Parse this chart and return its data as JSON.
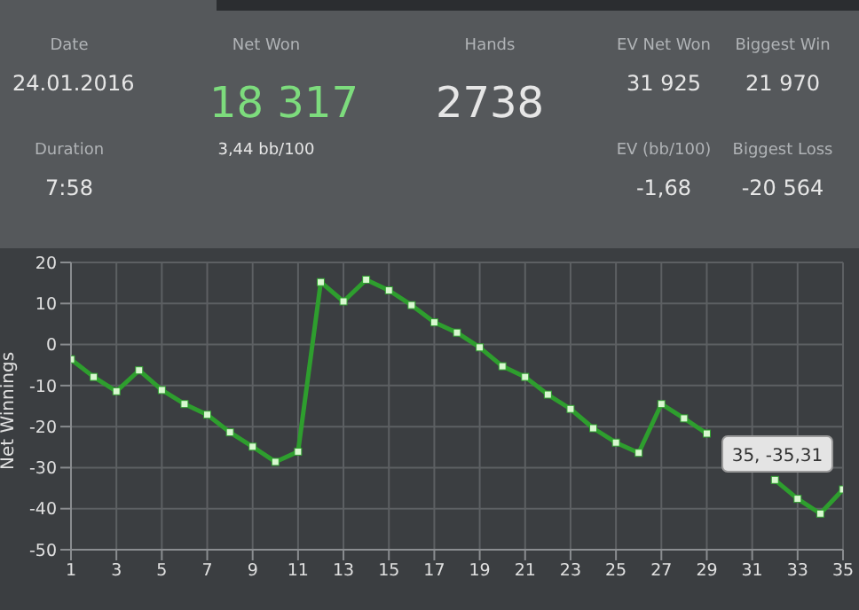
{
  "chart_data": [
    {
      "type": "other",
      "annotations": [
        "Date",
        "24.01.2016",
        "Net Won",
        "18 317",
        "Hands",
        "2738",
        "EV Net Won",
        "31 925",
        "Biggest Win",
        "21 970",
        "Duration",
        "7:58",
        "3,44 bb/100",
        "EV (bb/100)",
        "-1,68",
        "Biggest Loss",
        "-20 564"
      ]
    },
    {
      "type": "line",
      "ylabel": "Net Winnings",
      "x": [
        1,
        2,
        3,
        4,
        5,
        6,
        7,
        8,
        9,
        10,
        11,
        12,
        13,
        14,
        15,
        16,
        17,
        18,
        19,
        20,
        21,
        22,
        23,
        24,
        25,
        26,
        27,
        28,
        29,
        30,
        31,
        32,
        33,
        34,
        35
      ],
      "series": [
        {
          "color": "#2e9e2e",
          "values": [
            -3.6,
            -7.9,
            -11.4,
            -6.3,
            -11.1,
            -14.5,
            -17.1,
            -21.4,
            -24.9,
            -28.6,
            -26.1,
            15.2,
            10.5,
            15.8,
            13.2,
            9.6,
            5.4,
            2.9,
            -0.7,
            -5.3,
            -7.9,
            -12.2,
            -15.7,
            -20.4,
            -23.9,
            -26.4,
            -14.5,
            -18,
            -21.7,
            null,
            null,
            -33,
            -37.6,
            -41.2,
            -35.31
          ]
        }
      ],
      "xlim": [
        1,
        35
      ],
      "xticks": [
        1,
        3,
        5,
        7,
        9,
        11,
        13,
        15,
        17,
        19,
        21,
        23,
        25,
        27,
        29,
        31,
        33,
        35
      ],
      "ylim": [
        -50,
        20
      ],
      "yticks": [
        -50,
        -40,
        -30,
        -20,
        -10,
        0,
        10,
        20
      ],
      "grid": true,
      "marker": "square",
      "line_style": "solid",
      "annotations": [
        {
          "text": "35, -35,31",
          "x": 35,
          "y": -35.31
        }
      ]
    }
  ]
}
